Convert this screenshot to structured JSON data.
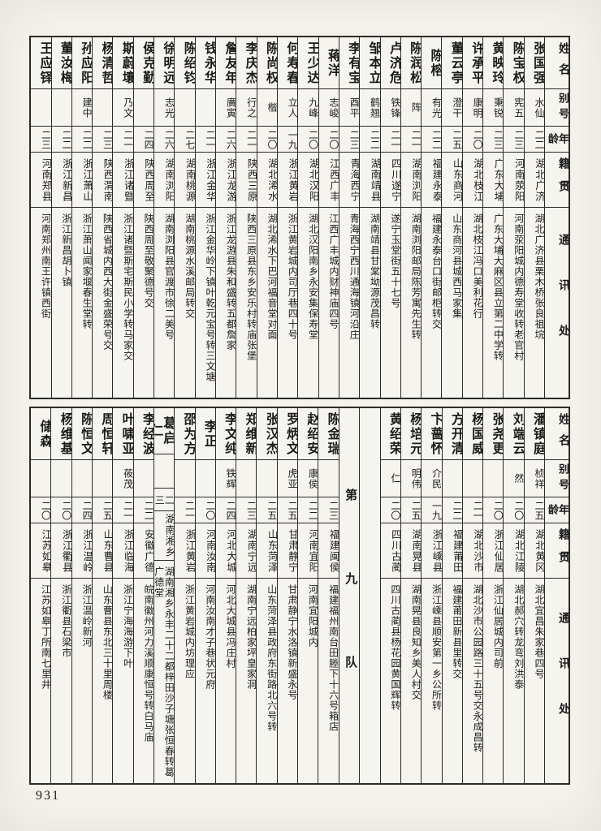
{
  "page": {
    "number": "931"
  },
  "headers": {
    "name": "姓名",
    "alias": "别号",
    "age": "年龄",
    "native": "籍贯",
    "address": "通讯处"
  },
  "divider": {
    "label": "第九队"
  },
  "tables": [
    {
      "name": "upper",
      "people": [
        {
          "name": "张国强",
          "alias": "水仙",
          "age": "二二",
          "native": "湖北广济",
          "address": "湖北广济县栗木桥张良祖垸"
        },
        {
          "name": "陈宝权",
          "alias": "宪五",
          "age": "二三",
          "native": "河南荥阳",
          "address": "河南荥阳城内德寿堂收转老官村"
        },
        {
          "name": "黄映玲",
          "alias": "秉锐",
          "age": "二三",
          "native": "广东大埔",
          "address": "广东大埔大麻区县立第二中学转"
        },
        {
          "name": "许承平",
          "alias": "康明",
          "age": "二〇",
          "native": "湖北枝江",
          "address": "湖北枝江冯口美利花行"
        },
        {
          "name": "董云亭",
          "alias": "澄干",
          "age": "二五",
          "native": "山东商河",
          "address": "山东商河县城西马家集"
        },
        {
          "name": "陈榕",
          "alias": "有光",
          "age": "二二",
          "native": "福建永泰",
          "address": "福建永泰台口街邮柜转交"
        },
        {
          "name": "陈润松",
          "alias": "阵",
          "age": "二一",
          "native": "湖南浏阳",
          "address": "湖南浏阳邮局陈芳寓先生转"
        },
        {
          "name": "卢济危",
          "alias": "铁锋",
          "age": "二一",
          "native": "四川遂宁",
          "address": "遂宁玉堂街五十七号"
        },
        {
          "name": "邹本立",
          "alias": "鹤翘",
          "age": "二二",
          "native": "湖南靖县",
          "address": "湖南靖县甘棠坳源茂昌转"
        },
        {
          "name": "李有宝",
          "alias": "酉平",
          "age": "二三",
          "native": "青海西宁",
          "address": "青海西宁西川通海镇河沿庄"
        },
        {
          "name": "蒋洋",
          "alias": "志峻",
          "age": "二〇",
          "native": "江西广丰",
          "address": "江西广丰城内财神庙四号"
        },
        {
          "name": "王少达",
          "alias": "九峰",
          "age": "二〇",
          "native": "湖北汉阳",
          "address": "湖北汉阳南乡永安集保寿堂"
        },
        {
          "name": "何寿春",
          "alias": "立人",
          "age": "一九",
          "native": "浙江黄岩",
          "address": "浙江黄岩城内司厅巷四十号"
        },
        {
          "name": "陈尚权",
          "alias": "楷",
          "age": "二〇",
          "native": "湖北浠水",
          "address": "湖北浠水下巴河福音堂对面"
        },
        {
          "name": "李庆杰",
          "alias": "行之",
          "age": "二一",
          "native": "陕西三原",
          "address": "陕西三原县东乡安乐村转庙张堡"
        },
        {
          "name": "詹友年",
          "alias": "廣寅",
          "age": "二六",
          "native": "浙江龙游",
          "address": "浙江龙游县朱和盛转五都詹家"
        },
        {
          "name": "钱永华",
          "alias": "",
          "age": "二一",
          "native": "浙江金华",
          "address": "浙江金华岭下镇叶乾元宝号转三文塘"
        },
        {
          "name": "陈绍钧",
          "alias": "",
          "age": "二七",
          "native": "湖南桃源",
          "address": "湖南桃源水溪邮局转交"
        },
        {
          "name": "徐明远",
          "alias": "志光",
          "age": "二六",
          "native": "湖南浏阳",
          "address": "湖南浏阳县官渡市徐二美号"
        },
        {
          "name": "侯克勤",
          "alias": "",
          "age": "二四",
          "native": "陕西周至",
          "address": "陕西周至敬聚德号交"
        },
        {
          "name": "斯蔚壤",
          "alias": "乃文",
          "age": "二一",
          "native": "浙江诸暨",
          "address": "浙江诸暨斯宅斯民小学转马家交"
        },
        {
          "name": "杨清哲",
          "alias": "",
          "age": "二三",
          "native": "陕西渭南",
          "address": "陕西省城内西大街金盛荣号交"
        },
        {
          "name": "孙应阳",
          "alias": "建中",
          "age": "二二",
          "native": "浙江萧山",
          "address": "浙江萧山闻家堰春生堂转"
        },
        {
          "name": "董汝梅",
          "alias": "",
          "age": "二二",
          "native": "浙江新昌",
          "address": "浙江新昌胡卜镇"
        },
        {
          "name": "王应铎",
          "alias": "",
          "age": "二三",
          "native": "河南郑县",
          "address": "河南郑州南王许镇西街"
        }
      ]
    },
    {
      "name": "lower",
      "divider_after_index": 7,
      "people": [
        {
          "name": "潘镇庭",
          "alias": "桢祥",
          "age": "二五",
          "native": "湖北黄冈",
          "address": "湖北宜昌朱家巷四号"
        },
        {
          "name": "刘端云",
          "alias": "然",
          "age": "二〇",
          "native": "湖北江陵",
          "address": "湖北郝穴转龙弯刘洪泰"
        },
        {
          "name": "张尧更",
          "alias": "",
          "age": "二〇",
          "native": "浙江仙居",
          "address": "浙江仙居城内司前"
        },
        {
          "name": "杨国威",
          "alias": "",
          "age": "二一",
          "native": "湖北沙市",
          "address": "湖北沙市公园路三十五号交永成昌转"
        },
        {
          "name": "方开清",
          "alias": "",
          "age": "二二",
          "native": "福建莆田",
          "address": "福建莆田新县里转交"
        },
        {
          "name": "卞蔷怀",
          "alias": "介民",
          "age": "一九",
          "native": "浙江嵊县",
          "address": "浙江嵊县顺安第一乡公所转"
        },
        {
          "name": "杨培元",
          "alias": "明伟",
          "age": "二五",
          "native": "湖南晃县",
          "address": "湖南晃县良知乡美人村交"
        },
        {
          "name": "黄绍荣",
          "alias": "仁",
          "age": "二〇",
          "native": "四川古蔺",
          "address": "四川古蔺县杨花园黄国辉转"
        },
        {
          "name": "陈金瑞",
          "alias": "",
          "age": "二三",
          "native": "福建闽侯",
          "address": "福建福州南台田塍下十六号箱店"
        },
        {
          "name": "赵绍安",
          "alias": "康侯",
          "age": "二二",
          "native": "河南宜阳",
          "address": "河南宜阳城内"
        },
        {
          "name": "罗炳文",
          "alias": "虎亚",
          "age": "二五",
          "native": "甘肃静宁",
          "address": "甘肃静宁水洛镇新盛永号"
        },
        {
          "name": "张汉杰",
          "alias": "",
          "age": "二五",
          "native": "山东菏泽",
          "address": "山东菏泽县政府东街路北六号转"
        },
        {
          "name": "郑维新",
          "alias": "",
          "age": "二三",
          "native": "湖南宁远",
          "address": "湖南宁远柏家坪皇家洞"
        },
        {
          "name": "李文纯",
          "alias": "铁辉",
          "age": "二四",
          "native": "河北大城",
          "address": "河北大城县冯庄村"
        },
        {
          "name": "李正",
          "alias": "",
          "age": "二〇",
          "native": "河南汝南",
          "address": "河南汝南才子巷状元府"
        },
        {
          "name": "邵为方",
          "alias": "",
          "age": "二一",
          "native": "浙江黄岩",
          "address": "浙江黄岩城内坊理应"
        },
        {
          "name": "葛启仁",
          "alias": "",
          "age": "二三",
          "native": "湖南湘乡",
          "address": "湖南湘乡永丰二十二都梓田沙子塘张恒春转葛广德堂"
        },
        {
          "name": "李经波",
          "alias": "",
          "age": "二二",
          "native": "安徽广德",
          "address": "皖南徽州河力溪顺康恒号转白马庙"
        },
        {
          "name": "叶啸亚",
          "alias": "莜茂",
          "age": "二一",
          "native": "浙江临海",
          "address": "浙江宁海海游下叶"
        },
        {
          "name": "周恒轩",
          "alias": "",
          "age": "二五",
          "native": "山东曹县",
          "address": "山东曹县东北三十里周楼"
        },
        {
          "name": "陈恒文",
          "alias": "",
          "age": "二四",
          "native": "浙江温岭",
          "address": "浙江温岭新河"
        },
        {
          "name": "杨维基",
          "alias": "",
          "age": "二〇",
          "native": "浙江衢县",
          "address": "浙江衢县石梁市"
        },
        {
          "name": "储森",
          "alias": "",
          "age": "二〇",
          "native": "江苏如皋",
          "address": "江苏如皋丁所南七里井"
        }
      ]
    }
  ]
}
